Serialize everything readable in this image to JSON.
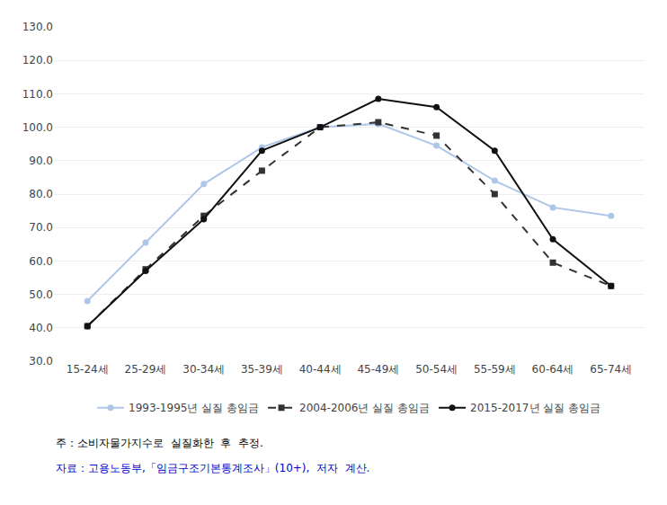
{
  "chart_data": {
    "type": "line",
    "categories": [
      "15-24세",
      "25-29세",
      "30-34세",
      "35-39세",
      "40-44세",
      "45-49세",
      "50-54세",
      "55-59세",
      "60-64세",
      "65-74세"
    ],
    "series": [
      {
        "name": "1993-1995년 실질 총임금",
        "color": "#aec6e8",
        "line_style": "solid",
        "marker": "circle",
        "values": [
          48.0,
          65.5,
          83.0,
          94.0,
          100.0,
          101.0,
          94.5,
          84.0,
          76.0,
          73.5
        ]
      },
      {
        "name": "2004-2006년 실질 총임금",
        "color": "#333333",
        "line_style": "dashed",
        "marker": "square",
        "values": [
          40.5,
          57.5,
          73.5,
          87.0,
          100.0,
          101.5,
          97.5,
          80.0,
          59.5,
          52.5
        ]
      },
      {
        "name": "2015-2017년 실질 총임금",
        "color": "#111111",
        "line_style": "solid",
        "marker": "circle",
        "values": [
          40.5,
          57.0,
          72.5,
          93.0,
          100.0,
          108.5,
          106.0,
          93.0,
          66.5,
          52.5
        ]
      }
    ],
    "ylim": [
      30.0,
      130.0
    ],
    "yticks": [
      {
        "value": 30.0,
        "label": "30.0"
      },
      {
        "value": 40.0,
        "label": "40.0"
      },
      {
        "value": 50.0,
        "label": "50.0"
      },
      {
        "value": 60.0,
        "label": "60.0"
      },
      {
        "value": 70.0,
        "label": "70.0"
      },
      {
        "value": 80.0,
        "label": "80.0"
      },
      {
        "value": 90.0,
        "label": "90.0"
      },
      {
        "value": 100.0,
        "label": "100.0"
      },
      {
        "value": 110.0,
        "label": "110.0"
      },
      {
        "value": 120.0,
        "label": "120.0"
      },
      {
        "value": 130.0,
        "label": "130.0"
      }
    ],
    "grid": true,
    "legend": "bottom",
    "annotations": [
      {
        "text": "주：소비자물가지수로  실질화한  후  추정.",
        "color": "#000000"
      },
      {
        "text": "자료：고용노동부,「임금구조기본통계조사」(10+),  저자  계산.",
        "color": "#0000cc"
      }
    ]
  }
}
